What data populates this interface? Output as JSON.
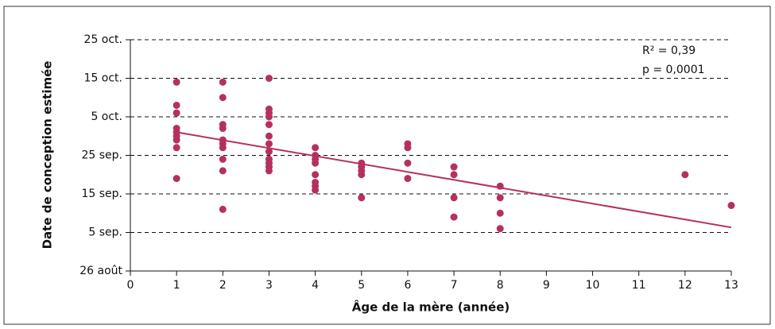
{
  "chart_data": {
    "type": "scatter",
    "xlabel": "Âge de la mère (année)",
    "ylabel": "Date de conception estimée",
    "annotations": [
      "R² = 0,39",
      "p = 0,0001"
    ],
    "color": "#b5305f",
    "x": [
      1,
      1,
      1,
      1,
      1,
      1,
      1,
      1,
      1,
      2,
      2,
      2,
      2,
      2,
      2,
      2,
      2,
      2,
      2,
      3,
      3,
      3,
      3,
      3,
      3,
      3,
      3,
      3,
      3,
      3,
      3,
      4,
      4,
      4,
      4,
      4,
      4,
      4,
      4,
      5,
      5,
      5,
      5,
      5,
      6,
      6,
      6,
      6,
      7,
      7,
      7,
      7,
      8,
      8,
      8,
      8,
      12,
      13
    ],
    "values": [
      49,
      43,
      41,
      37,
      36,
      35,
      34,
      32,
      24,
      49,
      45,
      38,
      37,
      34,
      33,
      32,
      29,
      26,
      16,
      50,
      42,
      41,
      40,
      38,
      35,
      33,
      31,
      29,
      28,
      27,
      26,
      32,
      30,
      29,
      28,
      25,
      23,
      22,
      21,
      28,
      27,
      26,
      25,
      19,
      33,
      32,
      28,
      24,
      27,
      25,
      19,
      14,
      22,
      19,
      15,
      11,
      25,
      17
    ],
    "trend": {
      "x": [
        1,
        13
      ],
      "values": [
        36,
        11.3
      ]
    },
    "xlim": [
      0,
      13
    ],
    "xticks": [
      0,
      1,
      2,
      3,
      4,
      5,
      6,
      7,
      8,
      9,
      10,
      11,
      12,
      13
    ],
    "ylim": [
      0,
      60
    ],
    "yticks": [
      {
        "value": 0,
        "label": "26 août"
      },
      {
        "value": 10,
        "label": "5 sep."
      },
      {
        "value": 20,
        "label": "15 sep."
      },
      {
        "value": 30,
        "label": "25 sep."
      },
      {
        "value": 40,
        "label": "5 oct."
      },
      {
        "value": 50,
        "label": "15 oct."
      },
      {
        "value": 60,
        "label": "25 oct."
      }
    ],
    "grid": true
  }
}
